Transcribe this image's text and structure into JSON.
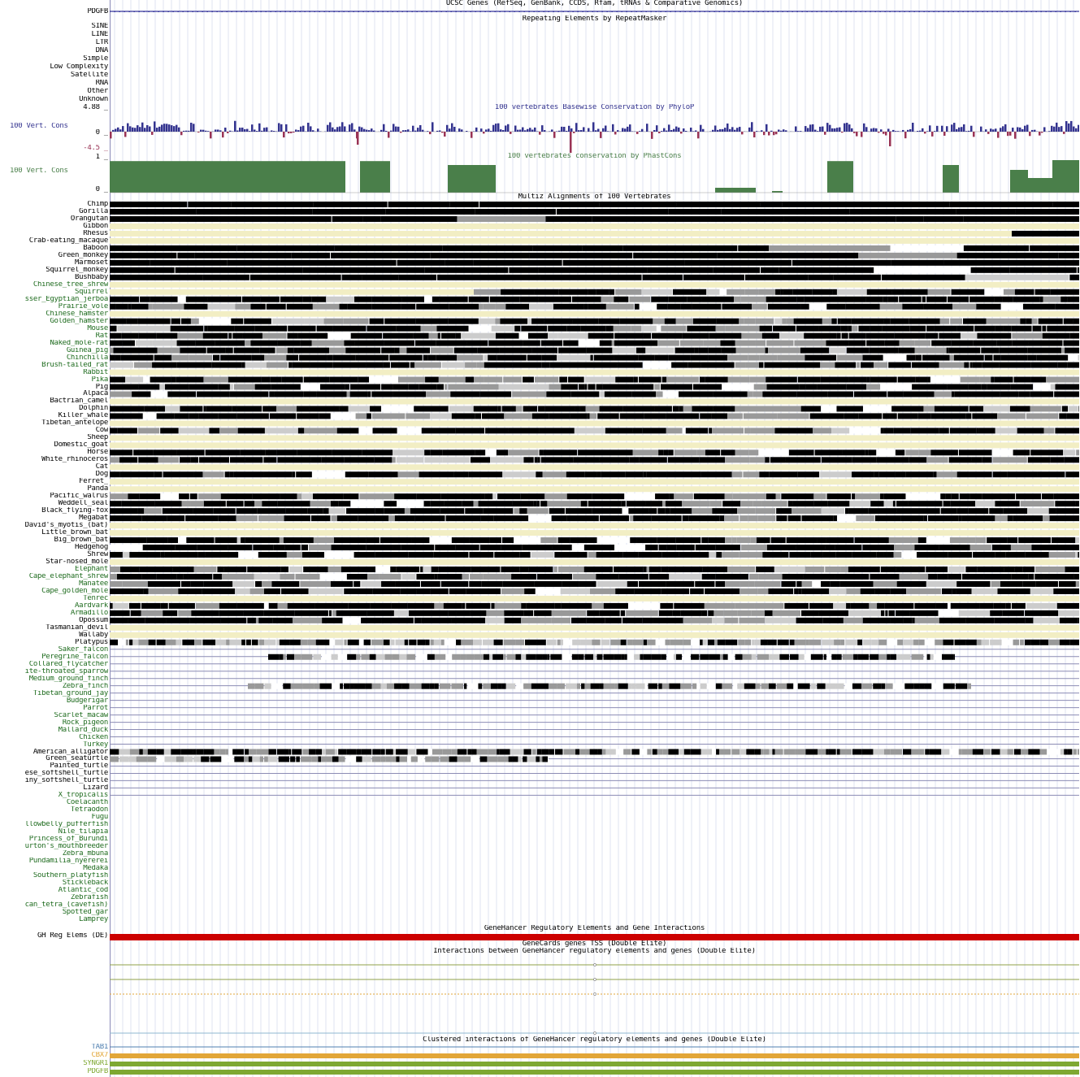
{
  "colors": {
    "species_dark": "#000000",
    "species_green": "#1e6b1e",
    "phylop_pos": "#33338f",
    "phylop_neg": "#993355",
    "phastcons": "#4a7f4a",
    "unaligned": "#f2eec4",
    "genehancer_red": "#cc0000",
    "cbx7": "#e2a638",
    "syngr1": "#7ea832",
    "pdgfb": "#7ea832",
    "tab1": "#4f7fb0"
  },
  "tracks": {
    "ucsc_genes_title": "UCSC Genes (RefSeq, GenBank, CCDS, Rfam, tRNAs & Comparative Genomics)",
    "ucsc_gene_label": "PDGFB",
    "repeat_title": "Repeating Elements by RepeatMasker",
    "repeat_classes": [
      "SINE",
      "LINE",
      "LTR",
      "DNA",
      "Simple",
      "Low Complexity",
      "Satellite",
      "RNA",
      "Other",
      "Unknown"
    ],
    "phylop_title": "100 vertebrates Basewise Conservation by PhyloP",
    "phylop_label": "100 Vert. Cons",
    "phylop_max": "4.88 _",
    "phylop_zero": "0 _",
    "phylop_min": "-4.5 _",
    "phastcons_title": "100 vertebrates conservation by PhastCons",
    "phastcons_label": "100 Vert. Cons",
    "phastcons_max": "1 _",
    "phastcons_zero": "0 _",
    "multiz_title": "Multiz Alignments of 100 Vertebrates",
    "genehancer_title": "GeneHancer Regulatory Elements and Gene Interactions",
    "gh_label": "GH Reg Elems (DE)",
    "tss_title": "GeneCards genes TSS (Double Elite)",
    "interactions_title": "Interactions between GeneHancer regulatory elements and genes (Double Elite)",
    "clustered_title": "Clustered interactions of GeneHancer regulatory elements and genes (Double Elite)",
    "clustered_genes": [
      "TAB1",
      "CBX7",
      "SYNGR1",
      "PDGFB"
    ]
  },
  "species": [
    {
      "name": "Chimp",
      "green": false
    },
    {
      "name": "Gorilla",
      "green": false
    },
    {
      "name": "Orangutan",
      "green": false
    },
    {
      "name": "Gibbon",
      "green": false
    },
    {
      "name": "Rhesus",
      "green": false
    },
    {
      "name": "Crab-eating_macaque",
      "green": false
    },
    {
      "name": "Baboon",
      "green": false
    },
    {
      "name": "Green_monkey",
      "green": false
    },
    {
      "name": "Marmoset",
      "green": false
    },
    {
      "name": "Squirrel_monkey",
      "green": false
    },
    {
      "name": "Bushbaby",
      "green": false
    },
    {
      "name": "Chinese_tree_shrew",
      "green": true
    },
    {
      "name": "Squirrel",
      "green": true
    },
    {
      "name": "sser_Egyptian_jerboa",
      "green": true
    },
    {
      "name": "Prairie_vole",
      "green": true
    },
    {
      "name": "Chinese_hamster",
      "green": true
    },
    {
      "name": "Golden_hamster",
      "green": true
    },
    {
      "name": "Mouse",
      "green": true
    },
    {
      "name": "Rat",
      "green": true
    },
    {
      "name": "Naked_mole-rat",
      "green": true
    },
    {
      "name": "Guinea_pig",
      "green": true
    },
    {
      "name": "Chinchilla",
      "green": true
    },
    {
      "name": "Brush-tailed_rat",
      "green": true
    },
    {
      "name": "Rabbit",
      "green": true
    },
    {
      "name": "Pika",
      "green": true
    },
    {
      "name": "Pig",
      "green": false
    },
    {
      "name": "Alpaca",
      "green": false
    },
    {
      "name": "Bactrian_camel",
      "green": false
    },
    {
      "name": "Dolphin",
      "green": false
    },
    {
      "name": "Killer_whale",
      "green": false
    },
    {
      "name": "Tibetan_antelope",
      "green": false
    },
    {
      "name": "Cow",
      "green": false
    },
    {
      "name": "Sheep",
      "green": false
    },
    {
      "name": "Domestic_goat",
      "green": false
    },
    {
      "name": "Horse",
      "green": false
    },
    {
      "name": "White_rhinoceros",
      "green": false
    },
    {
      "name": "Cat",
      "green": false
    },
    {
      "name": "Dog",
      "green": false
    },
    {
      "name": "Ferret_",
      "green": false
    },
    {
      "name": "Panda",
      "green": false
    },
    {
      "name": "Pacific_walrus",
      "green": false
    },
    {
      "name": "Weddell_seal",
      "green": false
    },
    {
      "name": "Black_flying-fox",
      "green": false
    },
    {
      "name": "Megabat",
      "green": false
    },
    {
      "name": "David's_myotis_(bat)",
      "green": false
    },
    {
      "name": "Little_brown_bat",
      "green": false
    },
    {
      "name": "Big_brown_bat",
      "green": false
    },
    {
      "name": "Hedgehog",
      "green": false
    },
    {
      "name": "Shrew",
      "green": false
    },
    {
      "name": "Star-nosed_mole",
      "green": false
    },
    {
      "name": "Elephant",
      "green": true
    },
    {
      "name": "Cape_elephant_shrew",
      "green": true
    },
    {
      "name": "Manatee",
      "green": true
    },
    {
      "name": "Cape_golden_mole",
      "green": true
    },
    {
      "name": "Tenrec",
      "green": true
    },
    {
      "name": "Aardvark",
      "green": true
    },
    {
      "name": "Armadillo",
      "green": true
    },
    {
      "name": "Opossum",
      "green": false
    },
    {
      "name": "Tasmanian_devil",
      "green": false
    },
    {
      "name": "Wallaby",
      "green": false
    },
    {
      "name": "Platypus",
      "green": false
    },
    {
      "name": "Saker_falcon",
      "green": true
    },
    {
      "name": "Peregrine_falcon",
      "green": true
    },
    {
      "name": "Collared_flycatcher",
      "green": true
    },
    {
      "name": "ite-throated_sparrow",
      "green": true
    },
    {
      "name": "Medium_ground_finch",
      "green": true
    },
    {
      "name": "Zebra_finch",
      "green": true
    },
    {
      "name": "Tibetan_ground_jay",
      "green": true
    },
    {
      "name": "Budgerigar",
      "green": true
    },
    {
      "name": "Parrot",
      "green": true
    },
    {
      "name": "Scarlet_macaw",
      "green": true
    },
    {
      "name": "Rock_pigeon",
      "green": true
    },
    {
      "name": "Mallard_duck",
      "green": true
    },
    {
      "name": "Chicken",
      "green": true
    },
    {
      "name": "Turkey",
      "green": true
    },
    {
      "name": "American_alligator",
      "green": false
    },
    {
      "name": "Green_seaturtle",
      "green": false
    },
    {
      "name": "Painted_turtle",
      "green": false
    },
    {
      "name": "ese_softshell_turtle",
      "green": false
    },
    {
      "name": "iny_softshell_turtle",
      "green": false
    },
    {
      "name": "Lizard",
      "green": false
    },
    {
      "name": "X_tropicalis",
      "green": true
    },
    {
      "name": "Coelacanth",
      "green": true
    },
    {
      "name": "Tetraodon",
      "green": true
    },
    {
      "name": "Fugu",
      "green": true
    },
    {
      "name": "llowbelly_pufferfish",
      "green": true
    },
    {
      "name": "Nile_tilapia",
      "green": true
    },
    {
      "name": "Princess_of_Burundi",
      "green": true
    },
    {
      "name": "urton's_mouthbreeder",
      "green": true
    },
    {
      "name": "Zebra_mbuna",
      "green": true
    },
    {
      "name": "Pundamilia_nyererei",
      "green": true
    },
    {
      "name": "Medaka",
      "green": true
    },
    {
      "name": "Southern_platyfish",
      "green": true
    },
    {
      "name": "Stickleback",
      "green": true
    },
    {
      "name": "Atlantic_cod",
      "green": true
    },
    {
      "name": "Zebrafish",
      "green": true
    },
    {
      "name": "can_tetra_(cavefish)",
      "green": true
    },
    {
      "name": "Spotted_gar",
      "green": true
    },
    {
      "name": "Lamprey",
      "green": true
    }
  ]
}
